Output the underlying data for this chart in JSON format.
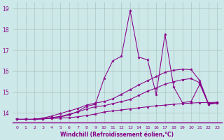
{
  "xlabel": "Windchill (Refroidissement éolien,°C)",
  "background_color": "#cce8e8",
  "line_color": "#880088",
  "xmin": -0.5,
  "xmax": 23.5,
  "ymin": 13.55,
  "ymax": 19.3,
  "yticks": [
    14,
    15,
    16,
    17,
    18,
    19
  ],
  "xticks": [
    0,
    1,
    2,
    3,
    4,
    5,
    6,
    7,
    8,
    9,
    10,
    11,
    12,
    13,
    14,
    15,
    16,
    17,
    18,
    19,
    20,
    21,
    22,
    23
  ],
  "series": [
    [
      13.7,
      13.7,
      13.7,
      13.72,
      13.74,
      13.76,
      13.78,
      13.82,
      13.88,
      13.95,
      14.05,
      14.1,
      14.15,
      14.2,
      14.25,
      14.3,
      14.35,
      14.38,
      14.42,
      14.45,
      14.48,
      14.5,
      14.5,
      14.52
    ],
    [
      13.7,
      13.7,
      13.7,
      13.74,
      13.78,
      13.84,
      13.95,
      14.05,
      14.2,
      14.3,
      14.35,
      14.45,
      14.55,
      14.65,
      14.85,
      15.05,
      15.2,
      15.38,
      15.5,
      15.6,
      15.65,
      15.45,
      14.42,
      14.48
    ],
    [
      13.7,
      13.7,
      13.7,
      13.76,
      13.86,
      13.98,
      14.1,
      14.22,
      14.38,
      14.48,
      14.55,
      14.68,
      14.9,
      15.12,
      15.35,
      15.55,
      15.75,
      15.95,
      16.05,
      16.1,
      16.08,
      15.55,
      14.45,
      14.5
    ],
    [
      13.7,
      13.7,
      13.7,
      13.72,
      13.78,
      13.82,
      13.9,
      14.08,
      14.32,
      14.42,
      15.65,
      16.5,
      16.72,
      18.92,
      16.68,
      16.55,
      14.88,
      17.78,
      15.25,
      14.5,
      14.55,
      15.38,
      14.42,
      14.48
    ]
  ]
}
